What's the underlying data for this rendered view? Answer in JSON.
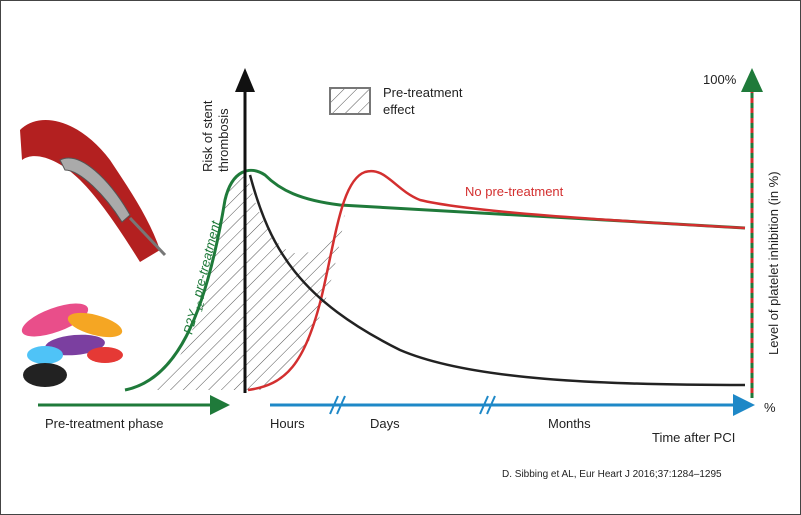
{
  "y_axis_label": [
    "Risk of stent",
    "thrombosis"
  ],
  "legend": [
    "Pre-treatment",
    "effect"
  ],
  "right_axis_top": "100%",
  "right_axis_label": "Level of platelet inhibition (in %)",
  "right_axis_bottom": "%",
  "curve_no_pretreatment": "No pre-treatment",
  "curve_pretreatment": {
    "prefix": "P2Y",
    "subscript": "12",
    "suffix": " pre-treatment"
  },
  "phase": "Pre-treatment phase",
  "time_segments": [
    "Hours",
    "Days",
    "Months"
  ],
  "x_axis_label": "Time after PCI",
  "citation": "D. Sibbing et AL, Eur Heart J 2016;37:1284–1295"
}
